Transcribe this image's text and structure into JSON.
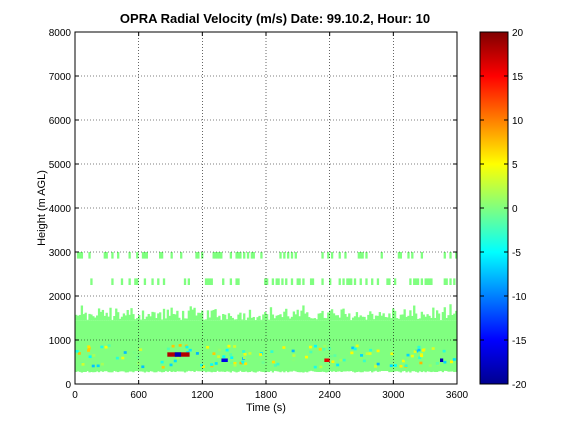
{
  "chart_data": {
    "type": "heatmap",
    "title": "OPRA Radial Velocity (m/s)  Date: 99.10.2, Hour: 10",
    "xlabel": "Time (s)",
    "ylabel": "Height (m AGL)",
    "xlim": [
      0,
      3600
    ],
    "ylim": [
      0,
      8000
    ],
    "xticks": [
      0,
      600,
      1200,
      1800,
      2400,
      3000,
      3600
    ],
    "yticks": [
      0,
      1000,
      2000,
      3000,
      4000,
      5000,
      6000,
      7000,
      8000
    ],
    "grid": true,
    "colorbar": {
      "min": -20,
      "max": 20,
      "ticks": [
        20,
        15,
        10,
        5,
        0,
        -5,
        -10,
        -15,
        -20
      ],
      "colormap": "jet"
    },
    "background_value": 0,
    "layers": [
      {
        "bottom": 300,
        "top": 1450,
        "value": 0,
        "note": "dense"
      },
      {
        "bottom": 1450,
        "top": 1700,
        "value": 0,
        "note": "ragged"
      },
      {
        "bottom": 2250,
        "top": 2400,
        "value": 0,
        "note": "sparse"
      },
      {
        "bottom": 2850,
        "top": 3000,
        "value": 0,
        "note": "sparse"
      }
    ],
    "features": [
      {
        "x_start": 870,
        "x_end": 1080,
        "y_bottom": 620,
        "y_top": 720,
        "value": 18
      },
      {
        "x_start": 940,
        "x_end": 1000,
        "y_bottom": 620,
        "y_top": 720,
        "value": -18
      },
      {
        "x_start": 1380,
        "x_end": 1440,
        "y_bottom": 500,
        "y_top": 580,
        "value": -16
      },
      {
        "x_start": 2350,
        "x_end": 2400,
        "y_bottom": 500,
        "y_top": 580,
        "value": 16
      },
      {
        "x_start": 3440,
        "x_end": 3470,
        "y_bottom": 500,
        "y_top": 580,
        "value": -18
      }
    ]
  }
}
